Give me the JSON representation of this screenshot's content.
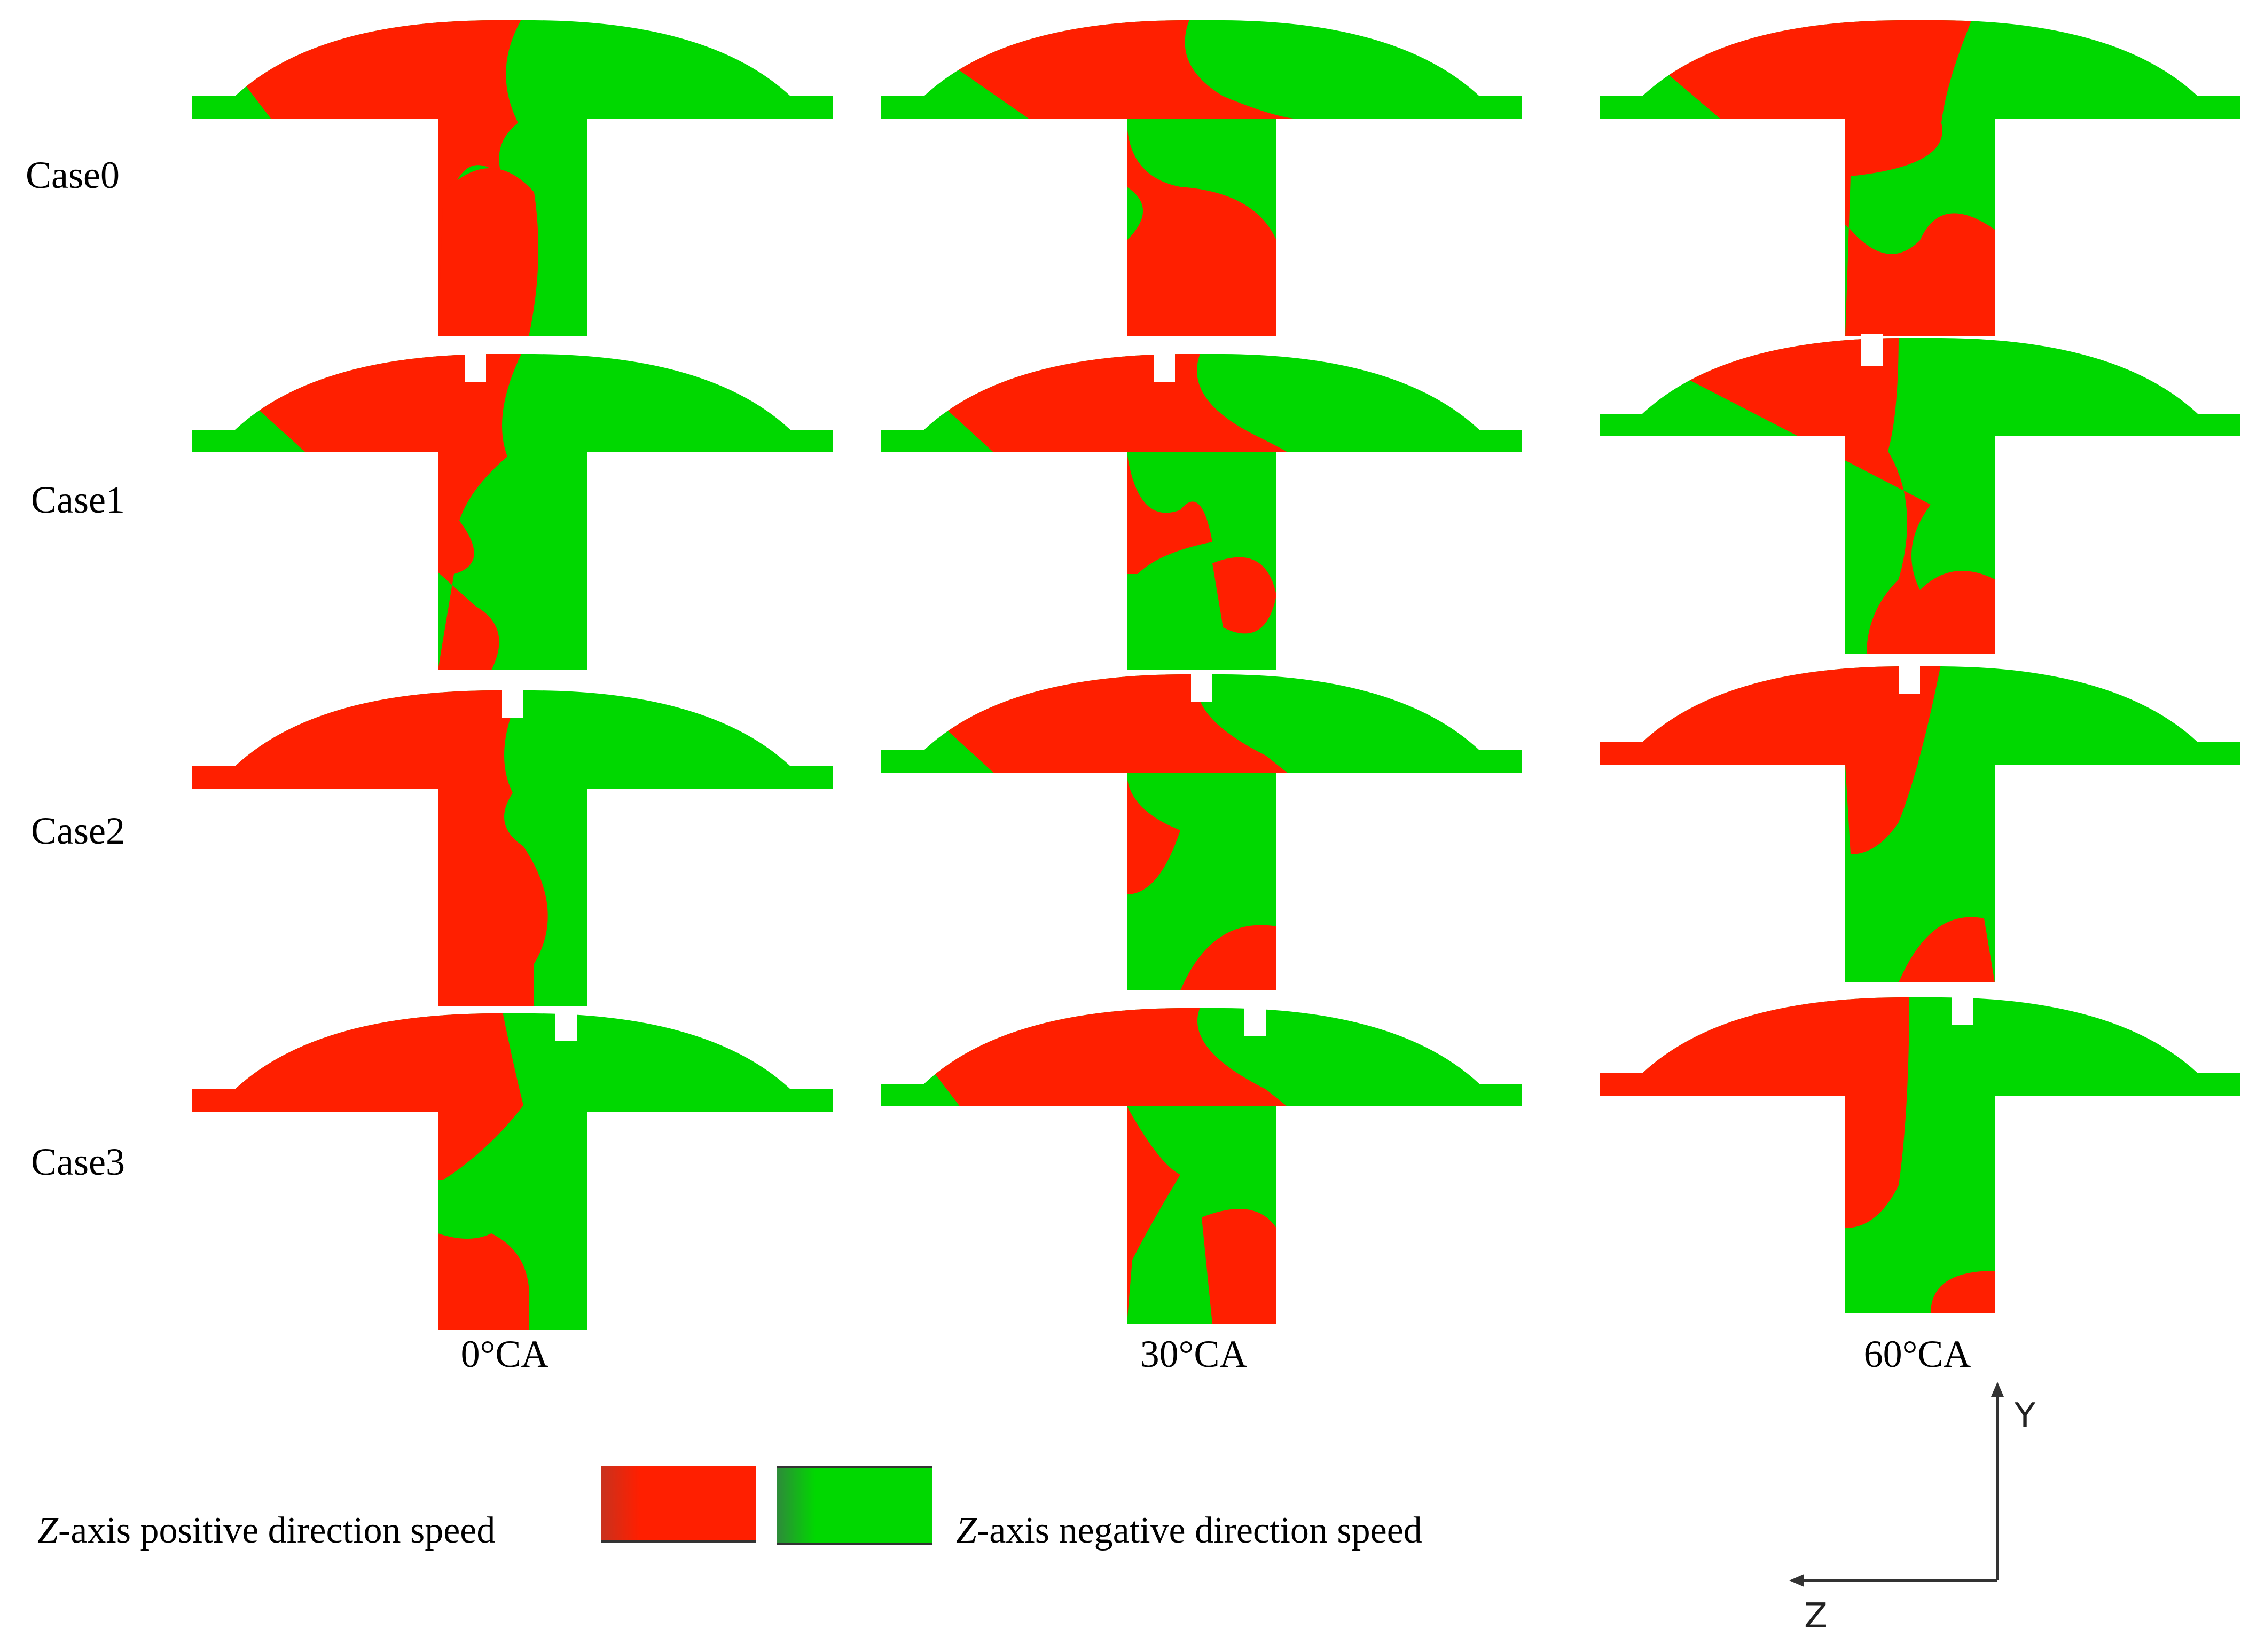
{
  "rows": [
    "Case0",
    "Case1",
    "Case2",
    "Case3"
  ],
  "columns": [
    "0°CA",
    "30°CA",
    "60°CA"
  ],
  "colors": {
    "positive": "#ff1f00",
    "negative": "#00d800",
    "background": "#ffffff"
  },
  "legend": {
    "positive_italic": "Z",
    "positive_rest": "-axis positive direction speed",
    "negative_italic": "Z",
    "negative_rest": "-axis negative direction speed"
  },
  "axes": {
    "y": "Y",
    "z": "Z"
  }
}
